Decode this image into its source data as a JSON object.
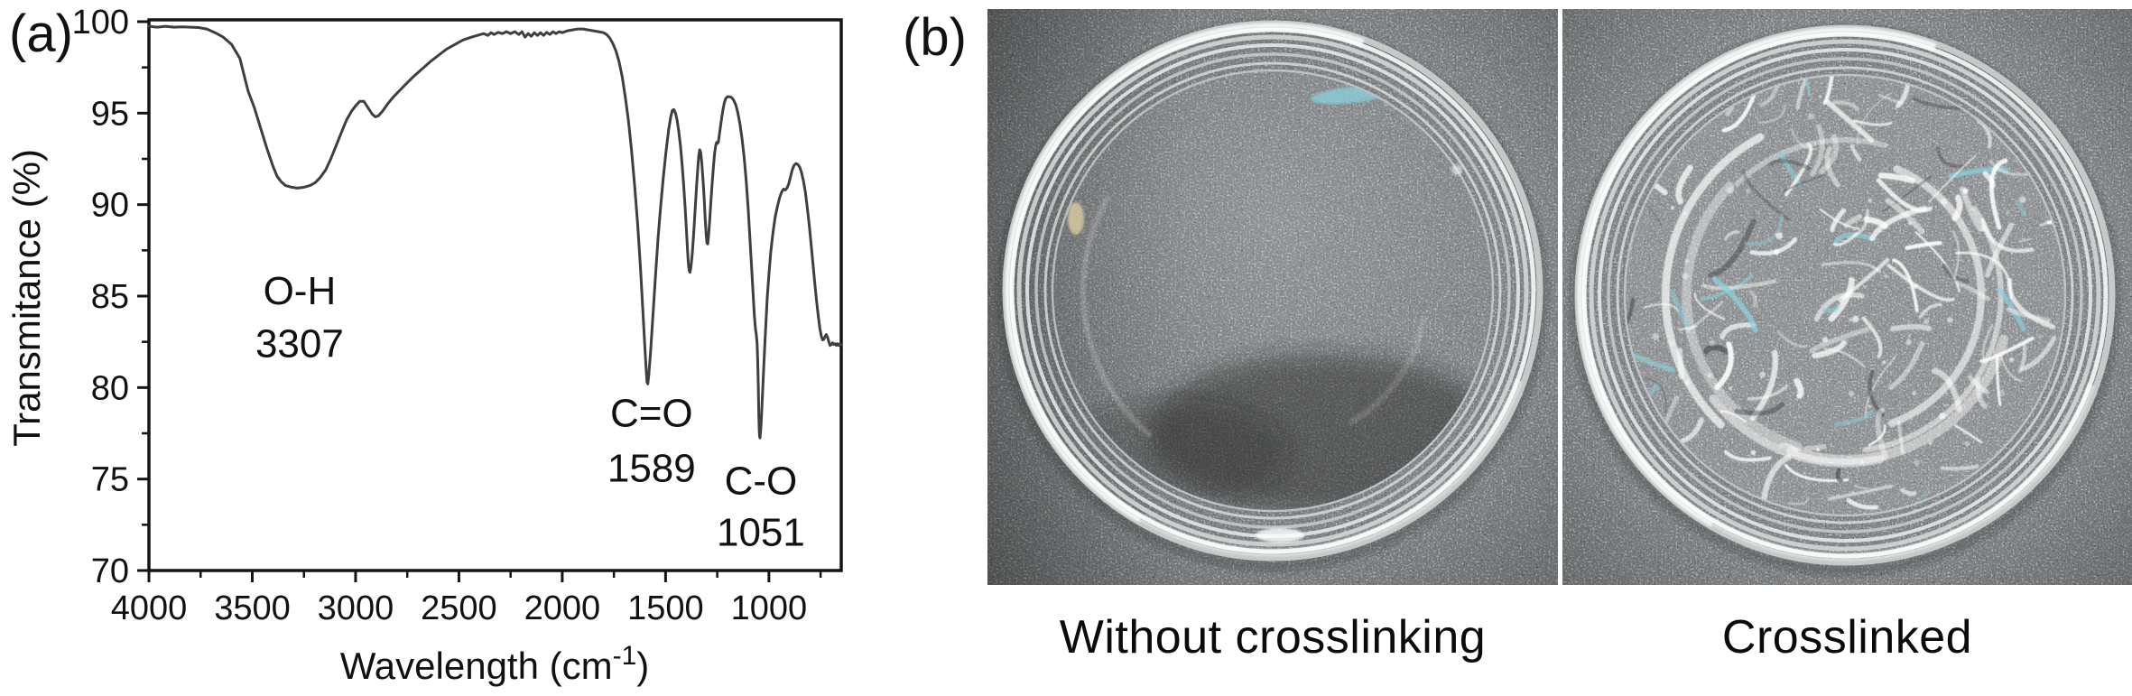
{
  "panels": {
    "a_label": "(a)",
    "b_label": "(b)"
  },
  "chart_data": {
    "type": "line",
    "xlabel": "Wavelength (cm⁻¹)",
    "xlabel_parts": {
      "pre": "Wavelength (cm",
      "sup": "-1",
      "post": ")"
    },
    "ylabel": "Transmitance (%)",
    "xlim": [
      4000,
      650
    ],
    "ylim": [
      70,
      100
    ],
    "x_ticks": [
      4000,
      3500,
      3000,
      2500,
      2000,
      1500,
      1000
    ],
    "x_minor_ticks": [
      3750,
      3250,
      2750,
      2250,
      1750,
      1250,
      750
    ],
    "y_ticks": [
      70,
      75,
      80,
      85,
      90,
      95,
      100
    ],
    "y_minor_ticks": [
      72.5,
      77.5,
      82.5,
      87.5,
      92.5,
      97.5
    ],
    "grid": false,
    "legend": "none",
    "annotations": [
      {
        "x": 3271,
        "lines": [
          {
            "text": "O-H",
            "y": 85.3
          },
          {
            "text": "3307",
            "y": 82.4
          }
        ]
      },
      {
        "x": 1568,
        "lines": [
          {
            "text": "C=O",
            "y": 78.6
          },
          {
            "text": "1589",
            "y": 75.6
          }
        ]
      },
      {
        "x": 1039,
        "lines": [
          {
            "text": "C-O",
            "y": 74.9
          },
          {
            "text": "1051",
            "y": 72.1
          }
        ]
      }
    ],
    "series": [
      {
        "points": [
          [
            4000,
            99.75
          ],
          [
            3960,
            99.7
          ],
          [
            3920,
            99.75
          ],
          [
            3880,
            99.7
          ],
          [
            3840,
            99.72
          ],
          [
            3800,
            99.7
          ],
          [
            3760,
            99.68
          ],
          [
            3720,
            99.6
          ],
          [
            3680,
            99.4
          ],
          [
            3640,
            99.15
          ],
          [
            3600,
            98.75
          ],
          [
            3560,
            98.0
          ],
          [
            3520,
            96.2
          ],
          [
            3490,
            95.3
          ],
          [
            3460,
            94.2
          ],
          [
            3430,
            93.1
          ],
          [
            3400,
            92.1
          ],
          [
            3380,
            91.55
          ],
          [
            3360,
            91.25
          ],
          [
            3340,
            91.05
          ],
          [
            3310,
            90.95
          ],
          [
            3280,
            90.9
          ],
          [
            3250,
            90.95
          ],
          [
            3220,
            91.05
          ],
          [
            3195,
            91.2
          ],
          [
            3170,
            91.5
          ],
          [
            3145,
            91.9
          ],
          [
            3120,
            92.5
          ],
          [
            3095,
            93.2
          ],
          [
            3070,
            93.9
          ],
          [
            3045,
            94.6
          ],
          [
            3020,
            95.1
          ],
          [
            3000,
            95.4
          ],
          [
            2980,
            95.65
          ],
          [
            2960,
            95.65
          ],
          [
            2940,
            95.3
          ],
          [
            2920,
            94.95
          ],
          [
            2905,
            94.8
          ],
          [
            2890,
            94.85
          ],
          [
            2870,
            95.1
          ],
          [
            2845,
            95.5
          ],
          [
            2820,
            95.85
          ],
          [
            2790,
            96.2
          ],
          [
            2760,
            96.55
          ],
          [
            2720,
            97.0
          ],
          [
            2680,
            97.4
          ],
          [
            2640,
            97.8
          ],
          [
            2600,
            98.15
          ],
          [
            2560,
            98.5
          ],
          [
            2520,
            98.75
          ],
          [
            2480,
            99.0
          ],
          [
            2440,
            99.15
          ],
          [
            2410,
            99.25
          ],
          [
            2380,
            99.35
          ],
          [
            2360,
            99.25
          ],
          [
            2345,
            99.4
          ],
          [
            2330,
            99.3
          ],
          [
            2310,
            99.42
          ],
          [
            2290,
            99.35
          ],
          [
            2270,
            99.45
          ],
          [
            2250,
            99.35
          ],
          [
            2230,
            99.45
          ],
          [
            2210,
            99.3
          ],
          [
            2195,
            99.45
          ],
          [
            2180,
            99.15
          ],
          [
            2165,
            99.35
          ],
          [
            2150,
            99.2
          ],
          [
            2135,
            99.4
          ],
          [
            2120,
            99.25
          ],
          [
            2105,
            99.4
          ],
          [
            2090,
            99.25
          ],
          [
            2075,
            99.42
          ],
          [
            2060,
            99.3
          ],
          [
            2045,
            99.45
          ],
          [
            2030,
            99.35
          ],
          [
            2015,
            99.45
          ],
          [
            2000,
            99.4
          ],
          [
            1975,
            99.5
          ],
          [
            1950,
            99.55
          ],
          [
            1925,
            99.6
          ],
          [
            1900,
            99.6
          ],
          [
            1875,
            99.55
          ],
          [
            1850,
            99.5
          ],
          [
            1825,
            99.45
          ],
          [
            1800,
            99.4
          ],
          [
            1785,
            99.3
          ],
          [
            1770,
            99.1
          ],
          [
            1755,
            98.8
          ],
          [
            1740,
            98.4
          ],
          [
            1725,
            97.8
          ],
          [
            1710,
            97.0
          ],
          [
            1695,
            95.9
          ],
          [
            1680,
            94.6
          ],
          [
            1665,
            93.0
          ],
          [
            1650,
            91.1
          ],
          [
            1635,
            88.9
          ],
          [
            1622,
            86.6
          ],
          [
            1611,
            84.4
          ],
          [
            1602,
            82.6
          ],
          [
            1595,
            81.2
          ],
          [
            1590,
            80.3
          ],
          [
            1586,
            80.2
          ],
          [
            1581,
            80.7
          ],
          [
            1573,
            81.9
          ],
          [
            1562,
            83.8
          ],
          [
            1549,
            86.1
          ],
          [
            1536,
            88.2
          ],
          [
            1523,
            90.0
          ],
          [
            1510,
            91.6
          ],
          [
            1497,
            93.0
          ],
          [
            1485,
            94.1
          ],
          [
            1475,
            94.8
          ],
          [
            1467,
            95.15
          ],
          [
            1460,
            95.2
          ],
          [
            1452,
            95.0
          ],
          [
            1444,
            94.6
          ],
          [
            1436,
            94.0
          ],
          [
            1428,
            93.2
          ],
          [
            1420,
            92.2
          ],
          [
            1412,
            91.0
          ],
          [
            1405,
            89.8
          ],
          [
            1399,
            88.6
          ],
          [
            1394,
            87.5
          ],
          [
            1390,
            86.8
          ],
          [
            1386,
            86.4
          ],
          [
            1382,
            86.3
          ],
          [
            1377,
            86.6
          ],
          [
            1371,
            87.3
          ],
          [
            1364,
            88.4
          ],
          [
            1357,
            89.7
          ],
          [
            1350,
            91.0
          ],
          [
            1344,
            92.0
          ],
          [
            1339,
            92.7
          ],
          [
            1335,
            93.0
          ],
          [
            1330,
            92.85
          ],
          [
            1325,
            92.3
          ],
          [
            1319,
            91.4
          ],
          [
            1313,
            90.3
          ],
          [
            1308,
            89.2
          ],
          [
            1304,
            88.4
          ],
          [
            1300,
            87.9
          ],
          [
            1296,
            87.85
          ],
          [
            1292,
            88.3
          ],
          [
            1287,
            89.1
          ],
          [
            1281,
            90.1
          ],
          [
            1275,
            91.1
          ],
          [
            1269,
            92.0
          ],
          [
            1263,
            92.8
          ],
          [
            1257,
            93.25
          ],
          [
            1253,
            93.4
          ],
          [
            1249,
            93.35
          ],
          [
            1245,
            93.4
          ],
          [
            1240,
            93.8
          ],
          [
            1234,
            94.3
          ],
          [
            1228,
            94.8
          ],
          [
            1222,
            95.2
          ],
          [
            1216,
            95.55
          ],
          [
            1209,
            95.8
          ],
          [
            1200,
            95.9
          ],
          [
            1190,
            95.9
          ],
          [
            1180,
            95.85
          ],
          [
            1170,
            95.7
          ],
          [
            1160,
            95.45
          ],
          [
            1150,
            95.0
          ],
          [
            1140,
            94.4
          ],
          [
            1130,
            93.6
          ],
          [
            1120,
            92.6
          ],
          [
            1110,
            91.3
          ],
          [
            1100,
            89.7
          ],
          [
            1091,
            88.0
          ],
          [
            1083,
            86.4
          ],
          [
            1076,
            85.0
          ],
          [
            1070,
            83.9
          ],
          [
            1065,
            83.2
          ],
          [
            1061,
            82.9
          ],
          [
            1057,
            82.4
          ],
          [
            1054,
            81.4
          ],
          [
            1051,
            79.9
          ],
          [
            1049,
            78.6
          ],
          [
            1047,
            77.7
          ],
          [
            1045,
            77.3
          ],
          [
            1043,
            77.25
          ],
          [
            1041,
            77.5
          ],
          [
            1038,
            78.0
          ],
          [
            1034,
            78.9
          ],
          [
            1029,
            80.1
          ],
          [
            1023,
            81.6
          ],
          [
            1016,
            83.2
          ],
          [
            1008,
            84.9
          ],
          [
            1000,
            86.2
          ],
          [
            991,
            87.4
          ],
          [
            981,
            88.4
          ],
          [
            970,
            89.3
          ],
          [
            959,
            89.9
          ],
          [
            948,
            90.4
          ],
          [
            938,
            90.7
          ],
          [
            929,
            90.85
          ],
          [
            921,
            90.8
          ],
          [
            913,
            90.9
          ],
          [
            905,
            91.1
          ],
          [
            896,
            91.5
          ],
          [
            887,
            91.9
          ],
          [
            878,
            92.15
          ],
          [
            869,
            92.25
          ],
          [
            860,
            92.2
          ],
          [
            851,
            92.05
          ],
          [
            842,
            91.75
          ],
          [
            833,
            91.3
          ],
          [
            824,
            90.7
          ],
          [
            815,
            89.9
          ],
          [
            806,
            89.0
          ],
          [
            797,
            88.0
          ],
          [
            788,
            86.9
          ],
          [
            779,
            85.8
          ],
          [
            770,
            84.8
          ],
          [
            761,
            83.9
          ],
          [
            753,
            83.2
          ],
          [
            746,
            82.8
          ],
          [
            740,
            82.6
          ],
          [
            734,
            82.65
          ],
          [
            728,
            82.8
          ],
          [
            722,
            82.9
          ],
          [
            716,
            82.75
          ],
          [
            710,
            82.5
          ],
          [
            704,
            82.3
          ],
          [
            698,
            82.35
          ],
          [
            692,
            82.45
          ],
          [
            686,
            82.35
          ],
          [
            680,
            82.4
          ],
          [
            674,
            82.3
          ],
          [
            668,
            82.4
          ],
          [
            662,
            82.3
          ],
          [
            656,
            82.38
          ],
          [
            650,
            82.35
          ]
        ]
      }
    ]
  },
  "photos": [
    {
      "caption": "Without crosslinking",
      "content": "clear liquid in petri dish"
    },
    {
      "caption": "Crosslinked",
      "content": "crumpled hydrogel film in petri dish"
    }
  ],
  "colors": {
    "ink": "#151515",
    "curve": "#3f3f3f",
    "photo_bg": "#54575a",
    "rim": "#eceeee",
    "cyan_accent": "#8ad2de",
    "caption_text": "#0b0b0b"
  }
}
